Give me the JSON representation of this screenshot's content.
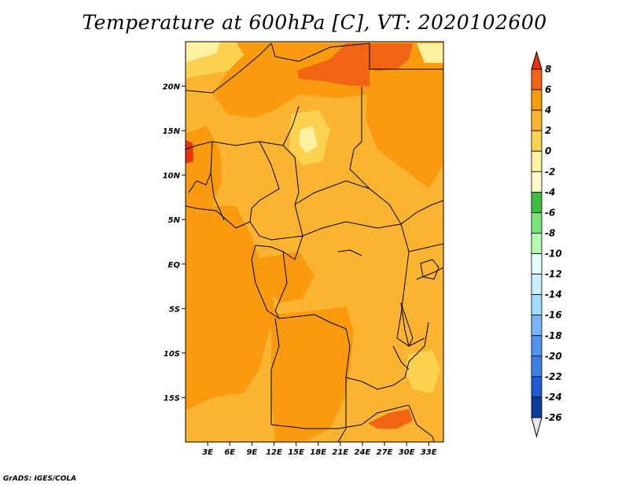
{
  "title": "Temperature at 600hPa [C], VT: 2020102600",
  "credit": "GrADS: IGES/COLA",
  "map": {
    "lat_range": [
      -20,
      25
    ],
    "lon_range": [
      0,
      35
    ],
    "lat_ticks": [
      {
        "value": 20,
        "label": "20N"
      },
      {
        "value": 15,
        "label": "15N"
      },
      {
        "value": 10,
        "label": "10N"
      },
      {
        "value": 5,
        "label": "5N"
      },
      {
        "value": 0,
        "label": "EQ"
      },
      {
        "value": -5,
        "label": "5S"
      },
      {
        "value": -10,
        "label": "10S"
      },
      {
        "value": -15,
        "label": "15S"
      }
    ],
    "lon_ticks": [
      {
        "value": 3,
        "label": "3E"
      },
      {
        "value": 6,
        "label": "6E"
      },
      {
        "value": 9,
        "label": "9E"
      },
      {
        "value": 12,
        "label": "12E"
      },
      {
        "value": 15,
        "label": "15E"
      },
      {
        "value": 18,
        "label": "18E"
      },
      {
        "value": 21,
        "label": "21E"
      },
      {
        "value": 24,
        "label": "24E"
      },
      {
        "value": 27,
        "label": "27E"
      },
      {
        "value": 30,
        "label": "30E"
      },
      {
        "value": 33,
        "label": "33E"
      }
    ]
  },
  "colorbar": {
    "levels": [
      "8",
      "6",
      "4",
      "2",
      "0",
      "-2",
      "-4",
      "-6",
      "-8",
      "-10",
      "-12",
      "-14",
      "-16",
      "-18",
      "-20",
      "-22",
      "-24",
      "-26"
    ],
    "colors": [
      "#f0320a",
      "#f06414",
      "#fa9b0f",
      "#fab432",
      "#fad250",
      "#faf0a0",
      "#fffac8",
      "#3cbe3c",
      "#78e678",
      "#b4fab4",
      "#e6ffff",
      "#c8f0ff",
      "#a0dcff",
      "#78b4ff",
      "#5096f0",
      "#3c82e6",
      "#1e5ad2",
      "#0a3c9b",
      "#0a1e6e",
      "#e6e6f5"
    ]
  },
  "fields": {
    "base_color": "#fab432",
    "dark_orange": "#fa9b0f",
    "red_orange": "#f06414",
    "yellow": "#fad250",
    "pale_yellow": "#faf0a0"
  }
}
